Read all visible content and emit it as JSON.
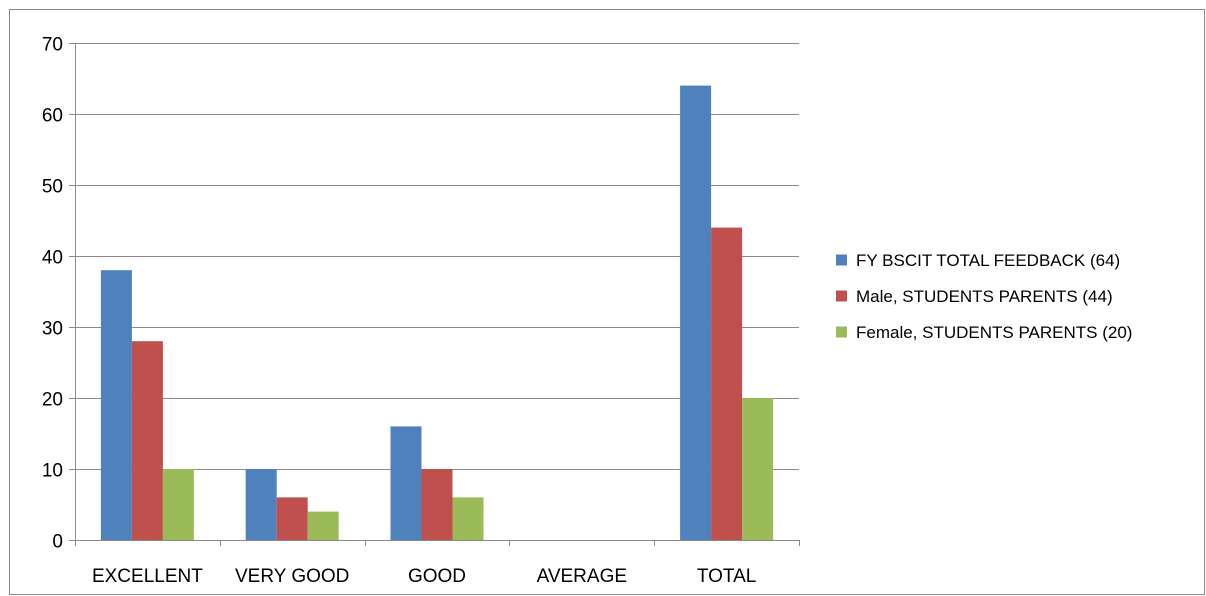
{
  "chart_data": {
    "type": "bar",
    "categories": [
      "EXCELLENT",
      "VERY GOOD",
      "GOOD",
      "AVERAGE",
      "TOTAL"
    ],
    "series": [
      {
        "name": "FY BSCIT TOTAL FEEDBACK (64)",
        "color": "#4f81bd",
        "values": [
          38,
          10,
          16,
          0,
          64
        ]
      },
      {
        "name": "Male, STUDENTS PARENTS (44)",
        "color": "#c0504d",
        "values": [
          28,
          6,
          10,
          0,
          44
        ]
      },
      {
        "name": "Female, STUDENTS PARENTS (20)",
        "color": "#9bbb59",
        "values": [
          10,
          4,
          6,
          0,
          20
        ]
      }
    ],
    "ylim": [
      0,
      70
    ],
    "yticks": [
      0,
      10,
      20,
      30,
      40,
      50,
      60,
      70
    ],
    "grid": true,
    "legend_position": "right"
  },
  "colors": {
    "gridline": "#8c8c8c",
    "axis": "#8c8c8c",
    "frame": "#8c8c8c"
  }
}
